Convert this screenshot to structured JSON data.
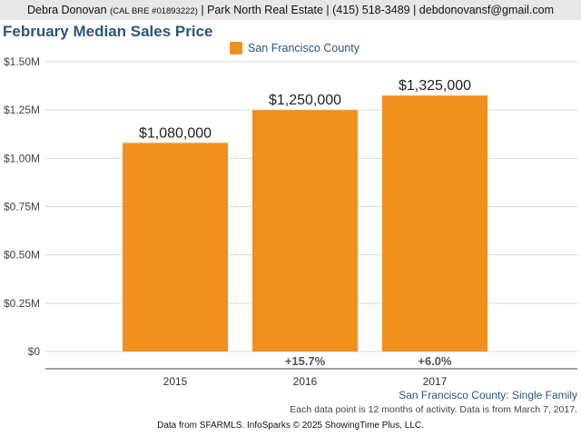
{
  "header": {
    "agent_name": "Debra Donovan",
    "license": "(CAL BRE #01893222)",
    "contact": "| Park North Real Estate | (415) 518-3489 | debdonovansf@gmail.com"
  },
  "footer": {
    "region": "San Francisco County: Single Family",
    "note": "Each data point is 12 months of activity. Data is from March 7, 2017.",
    "source": "Data from SFARMLS. InfoSparks © 2025 ShowingTime Plus, LLC."
  },
  "chart_data": {
    "type": "bar",
    "title": "February Median Sales Price",
    "xlabel": "",
    "ylabel": "",
    "categories": [
      "2015",
      "2016",
      "2017"
    ],
    "series": [
      {
        "name": "San Francisco County",
        "color": "#f0901e",
        "values": [
          1080000,
          1250000,
          1325000
        ],
        "value_labels": [
          "$1,080,000",
          "$1,250,000",
          "$1,325,000"
        ],
        "change_labels": [
          "",
          "+15.7%",
          "+6.0%"
        ]
      }
    ],
    "ylim": [
      0,
      1500000
    ],
    "yticks": [
      0,
      250000,
      500000,
      750000,
      1000000,
      1250000,
      1500000
    ],
    "ytick_labels": [
      "$0",
      "$0.25M",
      "$0.50M",
      "$0.75M",
      "$1.00M",
      "$1.25M",
      "$1.50M"
    ],
    "grid": true,
    "legend_position": "top-center"
  }
}
